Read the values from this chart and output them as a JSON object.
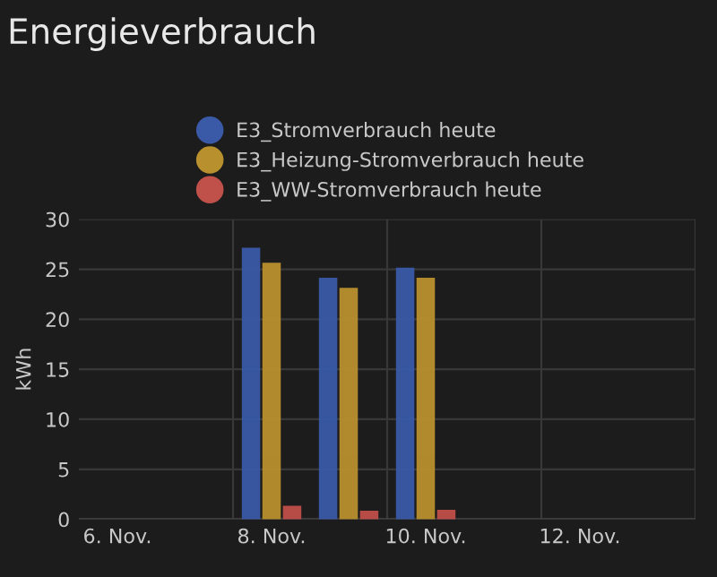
{
  "chart_data": {
    "type": "bar",
    "title": "Energieverbrauch",
    "ylabel": "kWh",
    "categories": [
      "6. Nov.",
      null,
      "8. Nov.",
      null,
      "10. Nov.",
      null,
      "12. Nov.",
      null
    ],
    "series": [
      {
        "name": "E3_Stromverbrauch heute",
        "color": "#3a5aa8",
        "values": [
          null,
          null,
          27,
          24,
          25,
          null,
          null,
          null
        ]
      },
      {
        "name": "E3_Heizung-Stromverbrauch heute",
        "color": "#b8902e",
        "values": [
          null,
          null,
          25.5,
          23,
          24,
          null,
          null,
          null
        ]
      },
      {
        "name": "E3_WW-Stromverbrauch heute",
        "color": "#c0504a",
        "values": [
          null,
          null,
          1.2,
          0.7,
          0.8,
          null,
          null,
          null
        ]
      }
    ],
    "ylim": [
      0,
      30
    ],
    "yticks": [
      0,
      5,
      10,
      15,
      20,
      25,
      30
    ],
    "grid": true,
    "legend": "top"
  }
}
